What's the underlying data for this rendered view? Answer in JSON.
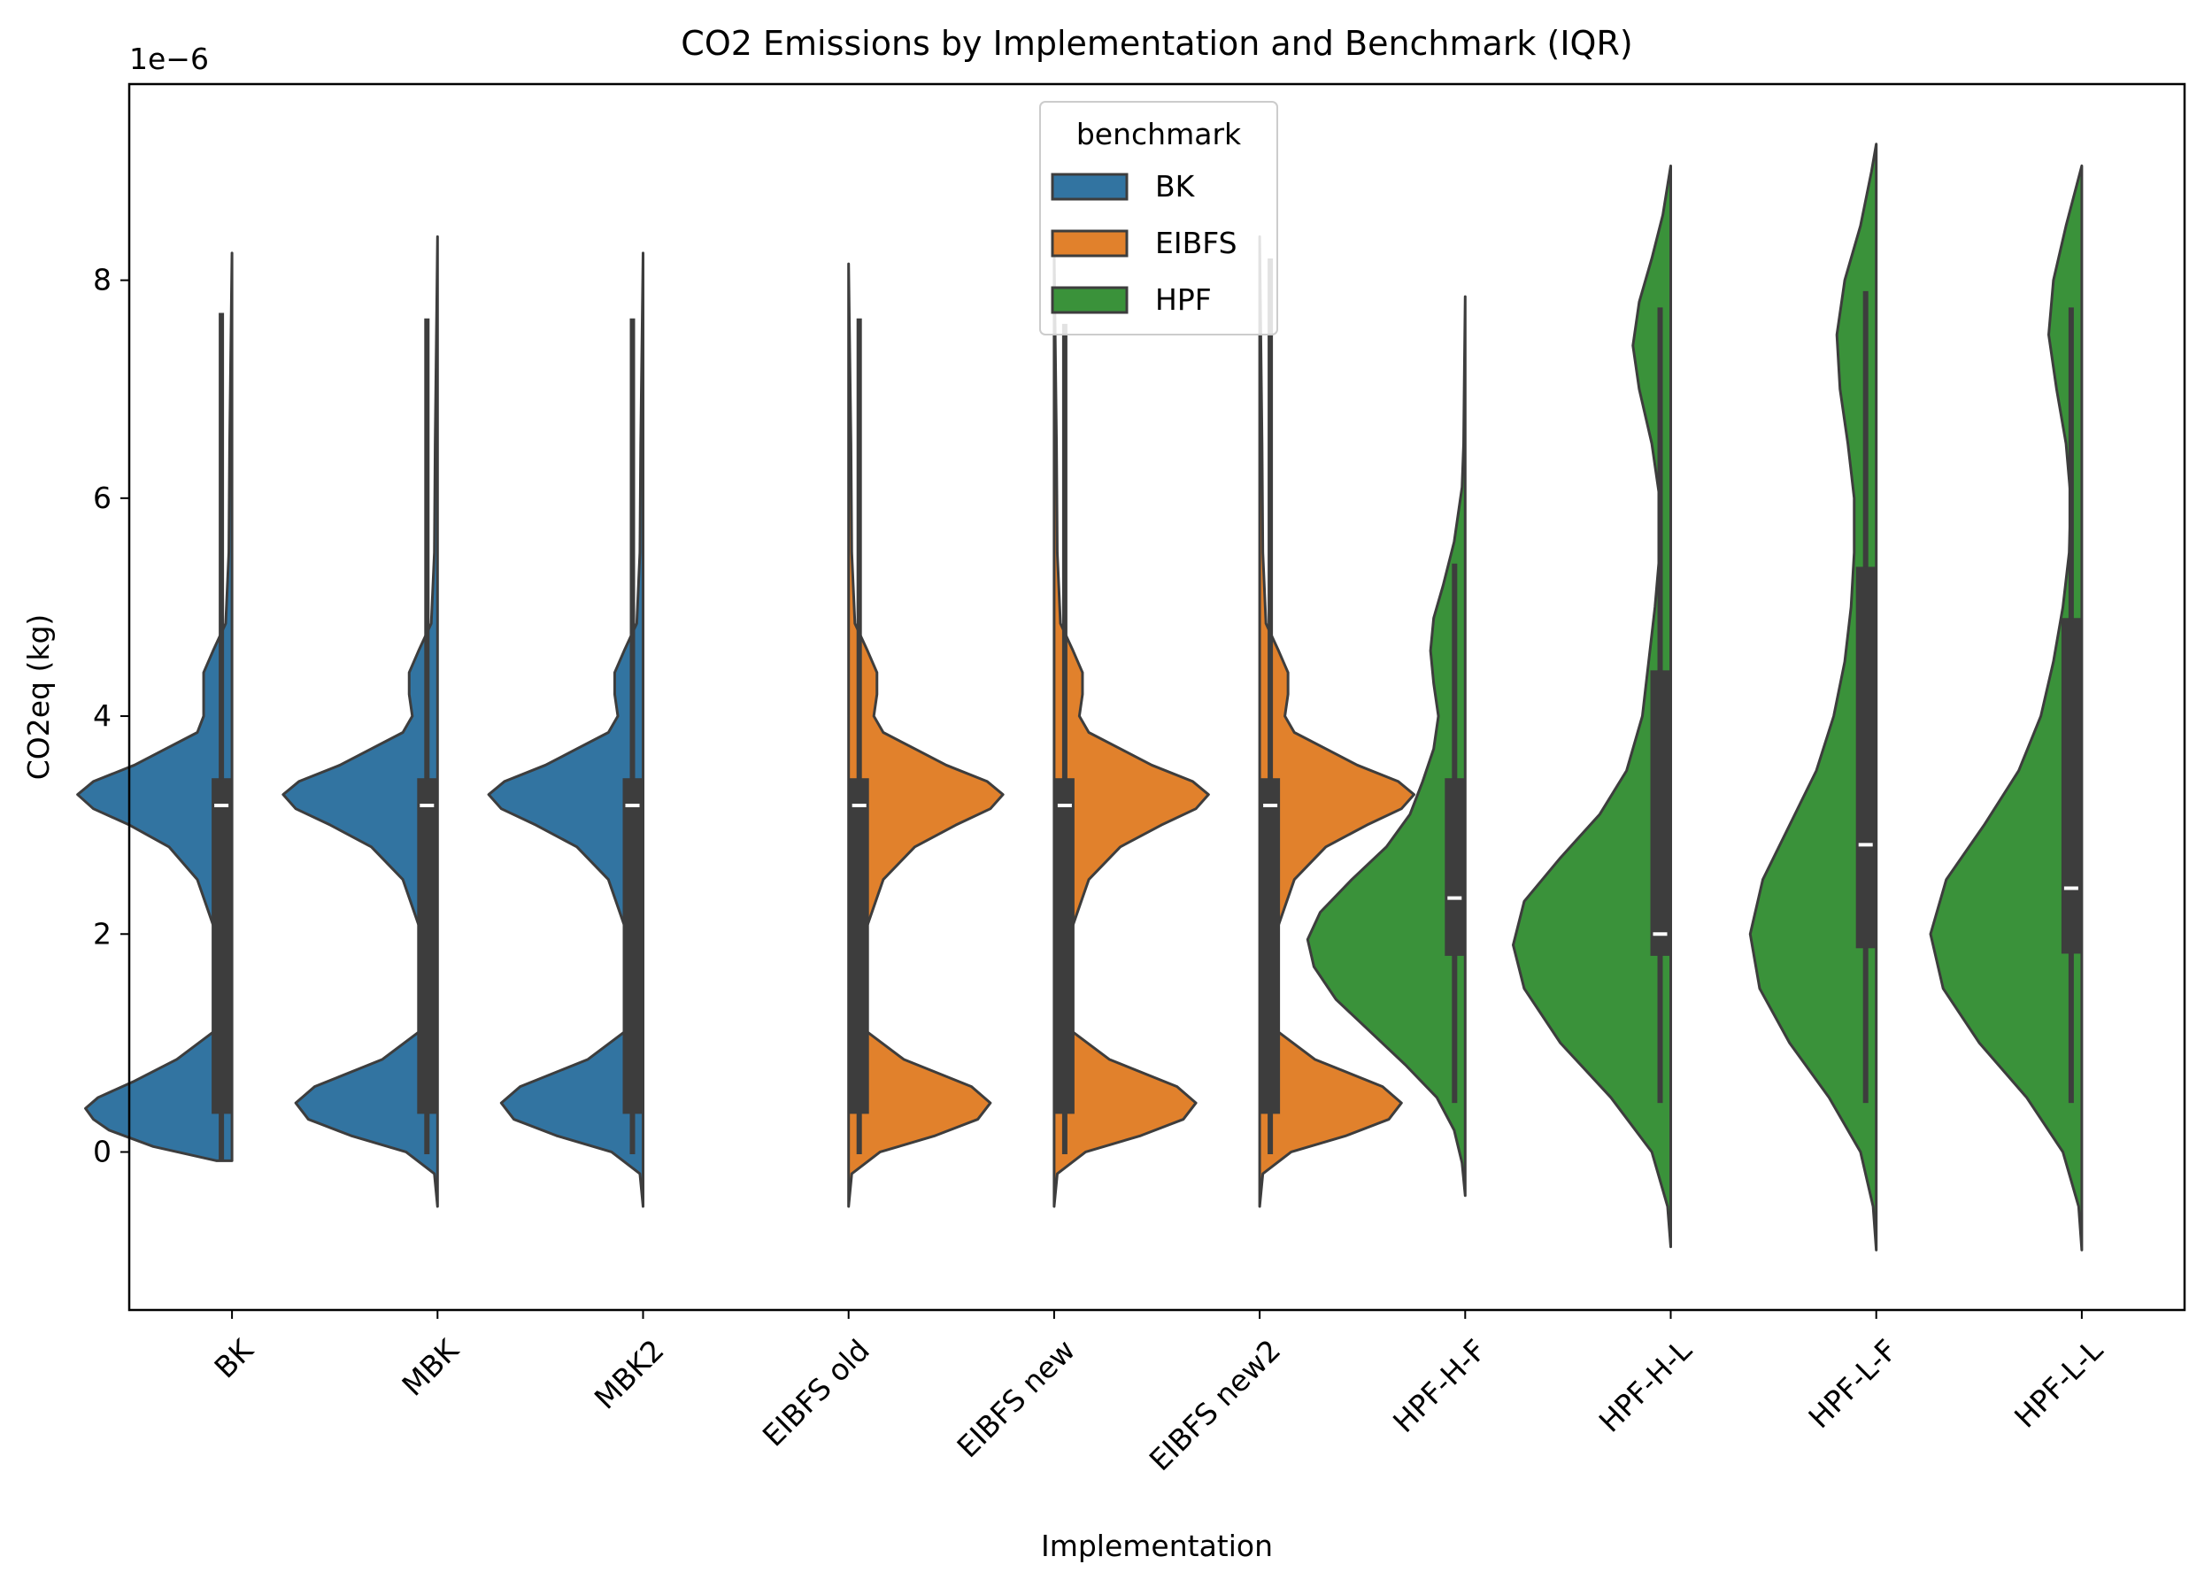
{
  "chart_data": {
    "type": "violin",
    "title": "CO2 Emissions by Implementation and Benchmark (IQR)",
    "xlabel": "Implementation",
    "ylabel": "CO2eq (kg)",
    "offset_label": "1e−6",
    "y_scale_factor": 1e-06,
    "ylim": [
      -1.45,
      9.8
    ],
    "yticks": [
      0,
      2,
      4,
      6,
      8
    ],
    "ytick_labels": [
      "0",
      "2",
      "4",
      "6",
      "8"
    ],
    "categories": [
      "BK",
      "MBK",
      "MBK2",
      "EIBFS old",
      "EIBFS new",
      "EIBFS new2",
      "HPF-H-F",
      "HPF-H-L",
      "HPF-L-F",
      "HPF-L-L"
    ],
    "grid": false,
    "legend": {
      "title": "benchmark",
      "placement": "top-center",
      "entries": [
        {
          "name": "BK",
          "color": "#3274a1"
        },
        {
          "name": "EIBFS",
          "color": "#e1812c"
        },
        {
          "name": "HPF",
          "color": "#3a923a"
        }
      ]
    },
    "box_color": "#3d3d3d",
    "outline_color": "#3d3d3d",
    "series": [
      {
        "category": "BK",
        "benchmark": "BK",
        "side": "left",
        "color": "#3274a1",
        "y_min": -0.08,
        "y_max": 8.25,
        "q1": 0.35,
        "median": 3.18,
        "q3": 3.43,
        "whisker_low": -0.08,
        "whisker_high": 7.7,
        "density": [
          [
            -0.08,
            0.1
          ],
          [
            0.05,
            0.5
          ],
          [
            0.2,
            0.78
          ],
          [
            0.3,
            0.88
          ],
          [
            0.4,
            0.93
          ],
          [
            0.5,
            0.85
          ],
          [
            0.65,
            0.62
          ],
          [
            0.85,
            0.35
          ],
          [
            1.1,
            0.12
          ],
          [
            1.5,
            0.06
          ],
          [
            2.0,
            0.1
          ],
          [
            2.5,
            0.22
          ],
          [
            2.8,
            0.4
          ],
          [
            3.0,
            0.65
          ],
          [
            3.15,
            0.88
          ],
          [
            3.28,
            0.98
          ],
          [
            3.4,
            0.88
          ],
          [
            3.55,
            0.62
          ],
          [
            3.7,
            0.42
          ],
          [
            3.85,
            0.22
          ],
          [
            4.0,
            0.18
          ],
          [
            4.2,
            0.18
          ],
          [
            4.4,
            0.18
          ],
          [
            4.6,
            0.12
          ],
          [
            4.85,
            0.04
          ],
          [
            5.5,
            0.02
          ],
          [
            6.5,
            0.015
          ],
          [
            8.25,
            0.0
          ]
        ]
      },
      {
        "category": "MBK",
        "benchmark": "BK",
        "side": "left",
        "color": "#3274a1",
        "y_min": -0.5,
        "y_max": 8.4,
        "q1": 0.35,
        "median": 3.18,
        "q3": 3.43,
        "whisker_low": -0.02,
        "whisker_high": 7.65,
        "density": [
          [
            -0.5,
            0.0
          ],
          [
            -0.2,
            0.02
          ],
          [
            0.0,
            0.2
          ],
          [
            0.15,
            0.55
          ],
          [
            0.3,
            0.82
          ],
          [
            0.45,
            0.9
          ],
          [
            0.6,
            0.78
          ],
          [
            0.85,
            0.35
          ],
          [
            1.1,
            0.12
          ],
          [
            1.5,
            0.06
          ],
          [
            2.0,
            0.1
          ],
          [
            2.5,
            0.22
          ],
          [
            2.8,
            0.42
          ],
          [
            3.0,
            0.68
          ],
          [
            3.15,
            0.9
          ],
          [
            3.28,
            0.98
          ],
          [
            3.4,
            0.88
          ],
          [
            3.55,
            0.62
          ],
          [
            3.7,
            0.42
          ],
          [
            3.85,
            0.22
          ],
          [
            4.0,
            0.16
          ],
          [
            4.2,
            0.18
          ],
          [
            4.4,
            0.18
          ],
          [
            4.6,
            0.12
          ],
          [
            4.85,
            0.04
          ],
          [
            5.5,
            0.02
          ],
          [
            6.5,
            0.015
          ],
          [
            8.4,
            0.0
          ]
        ]
      },
      {
        "category": "MBK2",
        "benchmark": "BK",
        "side": "left",
        "color": "#3274a1",
        "y_min": -0.5,
        "y_max": 8.25,
        "q1": 0.35,
        "median": 3.18,
        "q3": 3.43,
        "whisker_low": -0.02,
        "whisker_high": 7.65,
        "density": [
          [
            -0.5,
            0.0
          ],
          [
            -0.2,
            0.02
          ],
          [
            0.0,
            0.2
          ],
          [
            0.15,
            0.55
          ],
          [
            0.3,
            0.82
          ],
          [
            0.45,
            0.9
          ],
          [
            0.6,
            0.78
          ],
          [
            0.85,
            0.35
          ],
          [
            1.1,
            0.12
          ],
          [
            1.5,
            0.06
          ],
          [
            2.0,
            0.1
          ],
          [
            2.5,
            0.22
          ],
          [
            2.8,
            0.42
          ],
          [
            3.0,
            0.68
          ],
          [
            3.15,
            0.9
          ],
          [
            3.28,
            0.98
          ],
          [
            3.4,
            0.88
          ],
          [
            3.55,
            0.62
          ],
          [
            3.7,
            0.42
          ],
          [
            3.85,
            0.22
          ],
          [
            4.0,
            0.16
          ],
          [
            4.2,
            0.18
          ],
          [
            4.4,
            0.18
          ],
          [
            4.6,
            0.12
          ],
          [
            4.85,
            0.04
          ],
          [
            5.5,
            0.02
          ],
          [
            6.5,
            0.015
          ],
          [
            8.25,
            0.0
          ]
        ]
      },
      {
        "category": "EIBFS old",
        "benchmark": "EIBFS",
        "side": "right",
        "color": "#e1812c",
        "y_min": -0.5,
        "y_max": 8.15,
        "q1": 0.35,
        "median": 3.18,
        "q3": 3.43,
        "whisker_low": -0.02,
        "whisker_high": 7.65,
        "density": [
          [
            -0.5,
            0.0
          ],
          [
            -0.2,
            0.02
          ],
          [
            0.0,
            0.2
          ],
          [
            0.15,
            0.55
          ],
          [
            0.3,
            0.82
          ],
          [
            0.45,
            0.9
          ],
          [
            0.6,
            0.78
          ],
          [
            0.85,
            0.35
          ],
          [
            1.1,
            0.12
          ],
          [
            1.5,
            0.06
          ],
          [
            2.0,
            0.1
          ],
          [
            2.5,
            0.22
          ],
          [
            2.8,
            0.42
          ],
          [
            3.0,
            0.68
          ],
          [
            3.15,
            0.9
          ],
          [
            3.28,
            0.98
          ],
          [
            3.4,
            0.88
          ],
          [
            3.55,
            0.62
          ],
          [
            3.7,
            0.42
          ],
          [
            3.85,
            0.22
          ],
          [
            4.0,
            0.16
          ],
          [
            4.2,
            0.18
          ],
          [
            4.4,
            0.18
          ],
          [
            4.6,
            0.12
          ],
          [
            4.85,
            0.04
          ],
          [
            5.5,
            0.02
          ],
          [
            6.5,
            0.015
          ],
          [
            8.15,
            0.0
          ]
        ]
      },
      {
        "category": "EIBFS new",
        "benchmark": "EIBFS",
        "side": "right",
        "color": "#e1812c",
        "y_min": -0.5,
        "y_max": 8.3,
        "q1": 0.35,
        "median": 3.18,
        "q3": 3.43,
        "whisker_low": -0.02,
        "whisker_high": 7.6,
        "density": [
          [
            -0.5,
            0.0
          ],
          [
            -0.2,
            0.02
          ],
          [
            0.0,
            0.2
          ],
          [
            0.15,
            0.55
          ],
          [
            0.3,
            0.82
          ],
          [
            0.45,
            0.9
          ],
          [
            0.6,
            0.78
          ],
          [
            0.85,
            0.35
          ],
          [
            1.1,
            0.12
          ],
          [
            1.5,
            0.06
          ],
          [
            2.0,
            0.1
          ],
          [
            2.5,
            0.22
          ],
          [
            2.8,
            0.42
          ],
          [
            3.0,
            0.68
          ],
          [
            3.15,
            0.9
          ],
          [
            3.28,
            0.98
          ],
          [
            3.4,
            0.88
          ],
          [
            3.55,
            0.62
          ],
          [
            3.7,
            0.42
          ],
          [
            3.85,
            0.22
          ],
          [
            4.0,
            0.16
          ],
          [
            4.2,
            0.18
          ],
          [
            4.4,
            0.18
          ],
          [
            4.6,
            0.12
          ],
          [
            4.85,
            0.04
          ],
          [
            5.5,
            0.02
          ],
          [
            6.5,
            0.015
          ],
          [
            8.3,
            0.0
          ]
        ]
      },
      {
        "category": "EIBFS new2",
        "benchmark": "EIBFS",
        "side": "right",
        "color": "#e1812c",
        "y_min": -0.5,
        "y_max": 8.4,
        "q1": 0.35,
        "median": 3.18,
        "q3": 3.43,
        "whisker_low": -0.02,
        "whisker_high": 8.2,
        "density": [
          [
            -0.5,
            0.0
          ],
          [
            -0.2,
            0.02
          ],
          [
            0.0,
            0.2
          ],
          [
            0.15,
            0.55
          ],
          [
            0.3,
            0.82
          ],
          [
            0.45,
            0.9
          ],
          [
            0.6,
            0.78
          ],
          [
            0.85,
            0.35
          ],
          [
            1.1,
            0.12
          ],
          [
            1.5,
            0.06
          ],
          [
            2.0,
            0.1
          ],
          [
            2.5,
            0.22
          ],
          [
            2.8,
            0.42
          ],
          [
            3.0,
            0.68
          ],
          [
            3.15,
            0.9
          ],
          [
            3.28,
            0.98
          ],
          [
            3.4,
            0.88
          ],
          [
            3.55,
            0.62
          ],
          [
            3.7,
            0.42
          ],
          [
            3.85,
            0.22
          ],
          [
            4.0,
            0.16
          ],
          [
            4.2,
            0.18
          ],
          [
            4.4,
            0.18
          ],
          [
            4.6,
            0.12
          ],
          [
            4.85,
            0.04
          ],
          [
            5.5,
            0.02
          ],
          [
            6.5,
            0.015
          ],
          [
            8.4,
            0.0
          ]
        ]
      },
      {
        "category": "HPF-H-F",
        "benchmark": "HPF",
        "side": "left",
        "color": "#3a923a",
        "y_min": -0.4,
        "y_max": 7.85,
        "q1": 1.8,
        "median": 2.33,
        "q3": 3.43,
        "whisker_low": 0.45,
        "whisker_high": 5.4,
        "density": [
          [
            -0.4,
            0.0
          ],
          [
            -0.1,
            0.02
          ],
          [
            0.2,
            0.07
          ],
          [
            0.5,
            0.18
          ],
          [
            0.8,
            0.38
          ],
          [
            1.1,
            0.6
          ],
          [
            1.4,
            0.82
          ],
          [
            1.7,
            0.96
          ],
          [
            1.95,
            1.0
          ],
          [
            2.2,
            0.92
          ],
          [
            2.5,
            0.72
          ],
          [
            2.8,
            0.5
          ],
          [
            3.1,
            0.35
          ],
          [
            3.4,
            0.27
          ],
          [
            3.7,
            0.2
          ],
          [
            4.0,
            0.17
          ],
          [
            4.3,
            0.2
          ],
          [
            4.6,
            0.22
          ],
          [
            4.9,
            0.2
          ],
          [
            5.2,
            0.14
          ],
          [
            5.6,
            0.07
          ],
          [
            6.1,
            0.02
          ],
          [
            6.5,
            0.01
          ],
          [
            7.2,
            0.005
          ],
          [
            7.85,
            0.0
          ]
        ]
      },
      {
        "category": "HPF-H-L",
        "benchmark": "HPF",
        "side": "left",
        "color": "#3a923a",
        "y_min": -0.87,
        "y_max": 9.05,
        "q1": 1.8,
        "median": 2.0,
        "q3": 4.42,
        "whisker_low": 0.45,
        "whisker_high": 7.75,
        "density": [
          [
            -0.87,
            0.0
          ],
          [
            -0.5,
            0.02
          ],
          [
            0.0,
            0.12
          ],
          [
            0.5,
            0.38
          ],
          [
            1.0,
            0.7
          ],
          [
            1.5,
            0.93
          ],
          [
            1.9,
            1.0
          ],
          [
            2.3,
            0.93
          ],
          [
            2.7,
            0.7
          ],
          [
            3.1,
            0.45
          ],
          [
            3.5,
            0.28
          ],
          [
            4.0,
            0.18
          ],
          [
            4.5,
            0.14
          ],
          [
            5.0,
            0.1
          ],
          [
            5.5,
            0.07
          ],
          [
            6.0,
            0.07
          ],
          [
            6.5,
            0.12
          ],
          [
            7.0,
            0.2
          ],
          [
            7.4,
            0.24
          ],
          [
            7.8,
            0.2
          ],
          [
            8.2,
            0.12
          ],
          [
            8.6,
            0.05
          ],
          [
            9.05,
            0.0
          ]
        ]
      },
      {
        "category": "HPF-L-F",
        "benchmark": "HPF",
        "side": "left",
        "color": "#3a923a",
        "y_min": -0.9,
        "y_max": 9.25,
        "q1": 1.87,
        "median": 2.82,
        "q3": 5.37,
        "whisker_low": 0.45,
        "whisker_high": 7.9,
        "density": [
          [
            -0.9,
            0.0
          ],
          [
            -0.5,
            0.02
          ],
          [
            0.0,
            0.1
          ],
          [
            0.5,
            0.3
          ],
          [
            1.0,
            0.55
          ],
          [
            1.5,
            0.74
          ],
          [
            2.0,
            0.8
          ],
          [
            2.5,
            0.72
          ],
          [
            3.0,
            0.55
          ],
          [
            3.5,
            0.38
          ],
          [
            4.0,
            0.27
          ],
          [
            4.5,
            0.2
          ],
          [
            5.0,
            0.16
          ],
          [
            5.5,
            0.14
          ],
          [
            6.0,
            0.14
          ],
          [
            6.5,
            0.18
          ],
          [
            7.0,
            0.23
          ],
          [
            7.5,
            0.25
          ],
          [
            8.0,
            0.2
          ],
          [
            8.5,
            0.1
          ],
          [
            9.0,
            0.03
          ],
          [
            9.25,
            0.0
          ]
        ]
      },
      {
        "category": "HPF-L-L",
        "benchmark": "HPF",
        "side": "left",
        "color": "#3a923a",
        "y_min": -0.9,
        "y_max": 9.05,
        "q1": 1.82,
        "median": 2.42,
        "q3": 4.9,
        "whisker_low": 0.45,
        "whisker_high": 7.75,
        "density": [
          [
            -0.9,
            0.0
          ],
          [
            -0.5,
            0.02
          ],
          [
            0.0,
            0.12
          ],
          [
            0.5,
            0.35
          ],
          [
            1.0,
            0.65
          ],
          [
            1.5,
            0.88
          ],
          [
            2.0,
            0.96
          ],
          [
            2.5,
            0.86
          ],
          [
            3.0,
            0.62
          ],
          [
            3.5,
            0.4
          ],
          [
            4.0,
            0.26
          ],
          [
            4.5,
            0.18
          ],
          [
            5.0,
            0.12
          ],
          [
            5.5,
            0.08
          ],
          [
            6.0,
            0.07
          ],
          [
            6.5,
            0.1
          ],
          [
            7.0,
            0.16
          ],
          [
            7.5,
            0.21
          ],
          [
            8.0,
            0.18
          ],
          [
            8.5,
            0.1
          ],
          [
            9.05,
            0.0
          ]
        ]
      }
    ]
  }
}
